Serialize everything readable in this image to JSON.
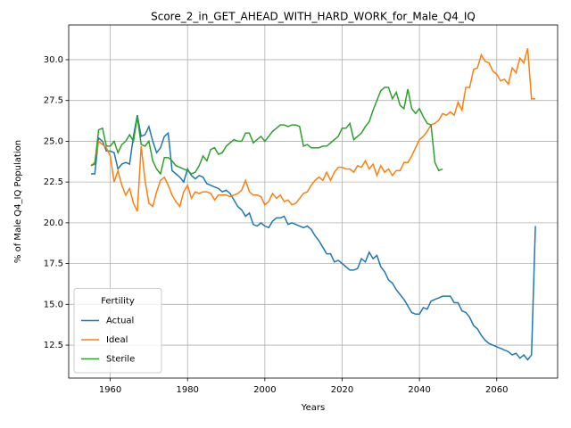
{
  "chart_data": {
    "type": "line",
    "title": "Score_2_in_GET_AHEAD_WITH_HARD_WORK_for_Male_Q4_IQ",
    "xlabel": "Years",
    "ylabel": "% of Male Q4_IQ Population",
    "legend_title": "Fertility",
    "legend_loc": "lower left",
    "grid": true,
    "xlim": [
      1949.25,
      2075.75
    ],
    "xticks": [
      1960,
      1980,
      2000,
      2020,
      2040,
      2060
    ],
    "ylim": [
      10.48,
      32.13
    ],
    "yticks": [
      12.5,
      {
        "value": 15,
        "label": "15.0"
      },
      17.5,
      {
        "value": 20,
        "label": "20.0"
      },
      22.5,
      {
        "value": 25,
        "label": "25.0"
      },
      27.5,
      {
        "value": 30,
        "label": "30.0"
      }
    ],
    "x": [
      1955,
      1956,
      1957,
      1958,
      1959,
      1960,
      1961,
      1962,
      1963,
      1964,
      1965,
      1966,
      1967,
      1968,
      1969,
      1970,
      1971,
      1972,
      1973,
      1974,
      1975,
      1976,
      1977,
      1978,
      1979,
      1980,
      1981,
      1982,
      1983,
      1984,
      1985,
      1986,
      1987,
      1988,
      1989,
      1990,
      1991,
      1992,
      1993,
      1994,
      1995,
      1996,
      1997,
      1998,
      1999,
      2000,
      2001,
      2002,
      2003,
      2004,
      2005,
      2006,
      2007,
      2008,
      2009,
      2010,
      2011,
      2012,
      2013,
      2014,
      2015,
      2016,
      2017,
      2018,
      2019,
      2020,
      2021,
      2022,
      2023,
      2024,
      2025,
      2026,
      2027,
      2028,
      2029,
      2030,
      2031,
      2032,
      2033,
      2034,
      2035,
      2036,
      2037,
      2038,
      2039,
      2040,
      2041,
      2042,
      2043,
      2044,
      2045,
      2046,
      2047,
      2048,
      2049,
      2050,
      2051,
      2052,
      2053,
      2054,
      2055,
      2056,
      2057,
      2058,
      2059,
      2060,
      2061,
      2062,
      2063,
      2064,
      2065,
      2066,
      2067,
      2068,
      2069,
      2070
    ],
    "series": [
      {
        "name": "Actual",
        "color": "#1f77b4",
        "values": [
          23.0,
          23.0,
          25.2,
          25.0,
          24.4,
          24.4,
          24.3,
          23.3,
          23.6,
          23.7,
          23.6,
          25.3,
          26.6,
          25.3,
          25.4,
          25.9,
          25.0,
          24.3,
          24.6,
          25.3,
          25.5,
          23.2,
          23.0,
          22.8,
          22.5,
          23.3,
          22.9,
          22.7,
          22.9,
          22.8,
          22.4,
          22.3,
          22.2,
          22.1,
          21.9,
          22.0,
          21.8,
          21.4,
          21.0,
          20.8,
          20.4,
          20.6,
          19.9,
          19.8,
          20.0,
          19.8,
          19.7,
          20.1,
          20.3,
          20.3,
          20.4,
          19.9,
          20.0,
          19.9,
          19.8,
          19.7,
          19.8,
          19.6,
          19.2,
          18.9,
          18.5,
          18.1,
          18.1,
          17.6,
          17.7,
          17.5,
          17.3,
          17.1,
          17.1,
          17.2,
          17.8,
          17.6,
          18.2,
          17.8,
          18.0,
          17.3,
          17.0,
          16.5,
          16.3,
          15.9,
          15.6,
          15.3,
          14.9,
          14.5,
          14.4,
          14.4,
          14.8,
          14.7,
          15.2,
          15.3,
          15.4,
          15.5,
          15.5,
          15.5,
          15.1,
          15.1,
          14.6,
          14.5,
          14.2,
          13.7,
          13.5,
          13.1,
          12.8,
          12.6,
          12.5,
          12.4,
          12.3,
          12.2,
          12.1,
          11.9,
          12.0,
          11.7,
          11.9,
          11.6,
          11.9,
          19.8
        ]
      },
      {
        "name": "Ideal",
        "color": "#ff7f0e",
        "values": [
          23.5,
          23.7,
          25.0,
          24.8,
          24.6,
          24.1,
          22.5,
          23.2,
          22.3,
          21.7,
          22.1,
          21.2,
          20.7,
          24.7,
          22.6,
          21.2,
          21.0,
          21.9,
          22.6,
          22.8,
          22.3,
          21.7,
          21.3,
          21.0,
          21.9,
          22.3,
          21.5,
          21.9,
          21.8,
          21.9,
          21.9,
          21.8,
          21.4,
          21.7,
          21.7,
          21.7,
          21.6,
          21.7,
          21.8,
          22.0,
          22.6,
          21.9,
          21.7,
          21.7,
          21.6,
          21.1,
          21.3,
          21.8,
          21.5,
          21.7,
          21.3,
          21.4,
          21.1,
          21.2,
          21.5,
          21.8,
          21.9,
          22.3,
          22.6,
          22.8,
          22.6,
          23.1,
          22.6,
          23.1,
          23.4,
          23.4,
          23.3,
          23.3,
          23.1,
          23.5,
          23.4,
          23.8,
          23.3,
          23.6,
          22.9,
          23.5,
          23.1,
          23.3,
          22.9,
          23.2,
          23.2,
          23.7,
          23.7,
          24.1,
          24.6,
          25.1,
          25.3,
          25.6,
          26.0,
          26.1,
          26.3,
          26.7,
          26.6,
          26.8,
          26.6,
          27.4,
          26.9,
          28.3,
          28.3,
          29.4,
          29.5,
          30.3,
          29.9,
          29.8,
          29.3,
          29.1,
          28.7,
          28.8,
          28.5,
          29.5,
          29.2,
          30.1,
          29.8,
          30.7,
          27.6,
          27.6
        ]
      },
      {
        "name": "Sterile",
        "color": "#2ca02c",
        "values": [
          23.5,
          23.6,
          25.7,
          25.8,
          24.7,
          24.7,
          25.0,
          24.3,
          24.8,
          25.0,
          25.4,
          25.0,
          26.5,
          24.8,
          24.7,
          25.0,
          23.8,
          23.3,
          23.0,
          24.0,
          24.0,
          23.8,
          23.5,
          23.4,
          23.3,
          23.2,
          23.0,
          23.1,
          23.5,
          24.1,
          23.8,
          24.5,
          24.6,
          24.2,
          24.3,
          24.7,
          24.9,
          25.1,
          25.0,
          25.0,
          25.5,
          25.5,
          24.9,
          25.1,
          25.3,
          25.0,
          25.3,
          25.6,
          25.8,
          26.0,
          26.0,
          25.9,
          26.0,
          26.0,
          25.9,
          24.7,
          24.8,
          24.6,
          24.6,
          24.6,
          24.7,
          24.7,
          24.9,
          25.1,
          25.3,
          25.8,
          25.8,
          26.1,
          25.1,
          25.3,
          25.5,
          25.9,
          26.2,
          26.9,
          27.5,
          28.1,
          28.3,
          28.3,
          27.6,
          28.0,
          27.2,
          27.0,
          28.2,
          27.0,
          26.7,
          27.0,
          26.5,
          26.1,
          26.0,
          23.7,
          23.2,
          23.3,
          null,
          null,
          null,
          null,
          null,
          null,
          null,
          null,
          null,
          null,
          null,
          null,
          null,
          null,
          null,
          null,
          null,
          null,
          null,
          null,
          null,
          null,
          null,
          null
        ]
      }
    ]
  }
}
